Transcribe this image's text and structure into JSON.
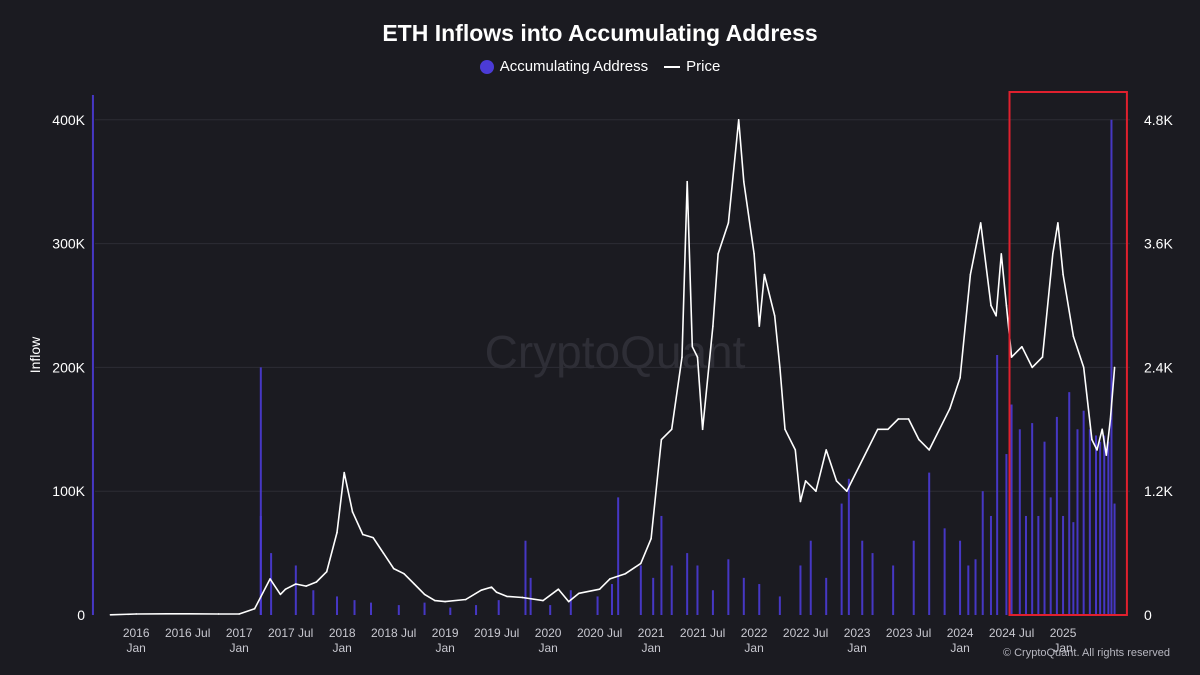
{
  "chart_data": {
    "type": "bar+line",
    "title": "ETH Inflows into Accumulating Address",
    "ylabel": "Inflow",
    "ylim_left": [
      0,
      420000
    ],
    "ylim_right": [
      0,
      5040
    ],
    "yticks_left": [
      {
        "value": 0,
        "label": "0"
      },
      {
        "value": 100000,
        "label": "100K"
      },
      {
        "value": 200000,
        "label": "200K"
      },
      {
        "value": 300000,
        "label": "300K"
      },
      {
        "value": 400000,
        "label": "400K"
      }
    ],
    "yticks_right": [
      {
        "value": 0,
        "label": "0"
      },
      {
        "value": 1200,
        "label": "1.2K"
      },
      {
        "value": 2400,
        "label": "2.4K"
      },
      {
        "value": 3600,
        "label": "3.6K"
      },
      {
        "value": 4800,
        "label": "4.8K"
      }
    ],
    "xlim": [
      2015.6,
      2025.65
    ],
    "xticks": [
      {
        "value": 2016.0,
        "label": "2016",
        "sub": "Jan"
      },
      {
        "value": 2016.5,
        "label": "2016 Jul",
        "sub": ""
      },
      {
        "value": 2017.0,
        "label": "2017",
        "sub": "Jan"
      },
      {
        "value": 2017.5,
        "label": "2017 Jul",
        "sub": ""
      },
      {
        "value": 2018.0,
        "label": "2018",
        "sub": "Jan"
      },
      {
        "value": 2018.5,
        "label": "2018 Jul",
        "sub": ""
      },
      {
        "value": 2019.0,
        "label": "2019",
        "sub": "Jan"
      },
      {
        "value": 2019.5,
        "label": "2019 Jul",
        "sub": ""
      },
      {
        "value": 2020.0,
        "label": "2020",
        "sub": "Jan"
      },
      {
        "value": 2020.5,
        "label": "2020 Jul",
        "sub": ""
      },
      {
        "value": 2021.0,
        "label": "2021",
        "sub": "Jan"
      },
      {
        "value": 2021.5,
        "label": "2021 Jul",
        "sub": ""
      },
      {
        "value": 2022.0,
        "label": "2022",
        "sub": "Jan"
      },
      {
        "value": 2022.5,
        "label": "2022 Jul",
        "sub": ""
      },
      {
        "value": 2023.0,
        "label": "2023",
        "sub": "Jan"
      },
      {
        "value": 2023.5,
        "label": "2023 Jul",
        "sub": ""
      },
      {
        "value": 2024.0,
        "label": "2024",
        "sub": "Jan"
      },
      {
        "value": 2024.5,
        "label": "2024 Jul",
        "sub": ""
      },
      {
        "value": 2025.0,
        "label": "2025",
        "sub": "Jan"
      }
    ],
    "series": [
      {
        "name": "Accumulating Address",
        "type": "bar",
        "axis": "left",
        "color": "#4b3bd6",
        "x": [
          2015.58,
          2017.21,
          2017.21,
          2017.31,
          2017.55,
          2017.72,
          2017.95,
          2018.12,
          2018.28,
          2018.55,
          2018.8,
          2019.05,
          2019.3,
          2019.52,
          2019.78,
          2019.83,
          2020.02,
          2020.22,
          2020.48,
          2020.62,
          2020.68,
          2020.9,
          2021.02,
          2021.1,
          2021.2,
          2021.35,
          2021.45,
          2021.6,
          2021.75,
          2021.9,
          2022.05,
          2022.25,
          2022.45,
          2022.55,
          2022.7,
          2022.85,
          2022.92,
          2023.05,
          2023.15,
          2023.35,
          2023.55,
          2023.7,
          2023.85,
          2024.0,
          2024.08,
          2024.15,
          2024.22,
          2024.3,
          2024.36,
          2024.45,
          2024.5,
          2024.58,
          2024.64,
          2024.7,
          2024.76,
          2024.82,
          2024.88,
          2024.94,
          2025.0,
          2025.06,
          2025.1,
          2025.14,
          2025.2,
          2025.26,
          2025.32,
          2025.36,
          2025.4,
          2025.44,
          2025.47,
          2025.5
        ],
        "values": [
          420000,
          200000,
          80000,
          50000,
          40000,
          20000,
          15000,
          12000,
          10000,
          8000,
          10000,
          6000,
          8000,
          12000,
          60000,
          30000,
          8000,
          20000,
          15000,
          25000,
          95000,
          40000,
          30000,
          80000,
          40000,
          50000,
          40000,
          20000,
          45000,
          30000,
          25000,
          15000,
          40000,
          60000,
          30000,
          90000,
          110000,
          60000,
          50000,
          40000,
          60000,
          115000,
          70000,
          60000,
          40000,
          45000,
          100000,
          80000,
          210000,
          130000,
          170000,
          150000,
          80000,
          155000,
          80000,
          140000,
          95000,
          160000,
          80000,
          180000,
          75000,
          150000,
          165000,
          150000,
          145000,
          140000,
          145000,
          140000,
          400000,
          90000
        ]
      },
      {
        "name": "Price",
        "type": "line",
        "axis": "right",
        "color": "#ffffff",
        "x": [
          2015.75,
          2016.0,
          2016.3,
          2016.5,
          2016.8,
          2017.0,
          2017.15,
          2017.3,
          2017.4,
          2017.45,
          2017.55,
          2017.65,
          2017.75,
          2017.85,
          2017.95,
          2018.02,
          2018.1,
          2018.2,
          2018.3,
          2018.4,
          2018.5,
          2018.6,
          2018.7,
          2018.8,
          2018.9,
          2019.0,
          2019.2,
          2019.35,
          2019.45,
          2019.5,
          2019.6,
          2019.75,
          2019.95,
          2020.1,
          2020.2,
          2020.3,
          2020.5,
          2020.6,
          2020.75,
          2020.9,
          2021.0,
          2021.1,
          2021.2,
          2021.3,
          2021.35,
          2021.4,
          2021.45,
          2021.5,
          2021.6,
          2021.65,
          2021.75,
          2021.85,
          2021.9,
          2022.0,
          2022.05,
          2022.1,
          2022.2,
          2022.25,
          2022.3,
          2022.4,
          2022.45,
          2022.5,
          2022.6,
          2022.7,
          2022.8,
          2022.9,
          2022.95,
          2023.1,
          2023.2,
          2023.3,
          2023.4,
          2023.5,
          2023.6,
          2023.7,
          2023.8,
          2023.9,
          2024.0,
          2024.1,
          2024.2,
          2024.3,
          2024.35,
          2024.4,
          2024.45,
          2024.5,
          2024.6,
          2024.7,
          2024.8,
          2024.9,
          2024.95,
          2025.0,
          2025.1,
          2025.2,
          2025.28,
          2025.33,
          2025.38,
          2025.42,
          2025.46,
          2025.5
        ],
        "values": [
          2,
          10,
          12,
          12,
          10,
          10,
          60,
          350,
          200,
          250,
          300,
          280,
          320,
          420,
          800,
          1380,
          1000,
          780,
          750,
          600,
          450,
          400,
          300,
          200,
          140,
          130,
          150,
          240,
          270,
          220,
          180,
          170,
          140,
          250,
          130,
          210,
          250,
          350,
          400,
          500,
          740,
          1700,
          1800,
          2500,
          4200,
          2600,
          2500,
          1800,
          2800,
          3500,
          3800,
          4800,
          4200,
          3500,
          2800,
          3300,
          2900,
          2400,
          1800,
          1600,
          1100,
          1300,
          1200,
          1600,
          1300,
          1200,
          1300,
          1600,
          1800,
          1800,
          1900,
          1900,
          1700,
          1600,
          1800,
          2000,
          2300,
          3300,
          3800,
          3000,
          2900,
          3500,
          3000,
          2500,
          2600,
          2400,
          2500,
          3500,
          3800,
          3300,
          2700,
          2400,
          1700,
          1600,
          1800,
          1550,
          1900,
          2400
        ]
      }
    ],
    "highlight_box": {
      "x_start": 2024.48,
      "x_end": 2025.62,
      "color": "#e0202e"
    },
    "watermark": "CryptoQuant",
    "copyright": "© CryptoQuant. All rights reserved"
  }
}
